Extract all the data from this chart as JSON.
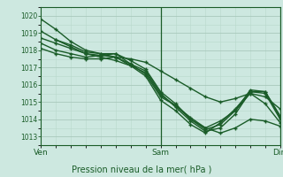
{
  "xlabel": "Pression niveau de la mer( hPa )",
  "ylim": [
    1012.5,
    1020.5
  ],
  "xlim": [
    0,
    48
  ],
  "yticks": [
    1013,
    1014,
    1015,
    1016,
    1017,
    1018,
    1019,
    1020
  ],
  "xtick_positions": [
    0,
    24,
    48
  ],
  "xtick_labels": [
    "Ven",
    "Sam",
    "Dim"
  ],
  "bg_color": "#cde8e0",
  "line_color": "#1a5c28",
  "grid_major_color": "#a8c8bc",
  "grid_minor_color": "#b8d8cc",
  "marker": "+",
  "linewidth": 1.0,
  "series": [
    [
      [
        0,
        1019.8
      ],
      [
        3,
        1019.2
      ],
      [
        6,
        1018.5
      ],
      [
        9,
        1018.0
      ],
      [
        12,
        1017.8
      ],
      [
        15,
        1017.6
      ],
      [
        18,
        1017.5
      ],
      [
        21,
        1017.3
      ],
      [
        24,
        1016.8
      ],
      [
        27,
        1016.3
      ],
      [
        30,
        1015.8
      ],
      [
        33,
        1015.3
      ],
      [
        36,
        1015.0
      ],
      [
        39,
        1015.2
      ],
      [
        42,
        1015.5
      ],
      [
        45,
        1015.3
      ],
      [
        48,
        1014.6
      ]
    ],
    [
      [
        0,
        1019.1
      ],
      [
        3,
        1018.6
      ],
      [
        6,
        1018.2
      ],
      [
        9,
        1017.8
      ],
      [
        12,
        1017.6
      ],
      [
        15,
        1017.4
      ],
      [
        18,
        1017.1
      ],
      [
        21,
        1016.7
      ],
      [
        24,
        1015.4
      ],
      [
        27,
        1014.8
      ],
      [
        30,
        1014.1
      ],
      [
        33,
        1013.5
      ],
      [
        36,
        1013.2
      ],
      [
        39,
        1013.5
      ],
      [
        42,
        1014.0
      ],
      [
        45,
        1013.9
      ],
      [
        48,
        1013.6
      ]
    ],
    [
      [
        0,
        1018.7
      ],
      [
        3,
        1018.4
      ],
      [
        6,
        1018.1
      ],
      [
        9,
        1017.8
      ],
      [
        12,
        1017.7
      ],
      [
        15,
        1017.6
      ],
      [
        18,
        1017.2
      ],
      [
        21,
        1016.8
      ],
      [
        24,
        1015.5
      ],
      [
        27,
        1014.7
      ],
      [
        30,
        1013.9
      ],
      [
        33,
        1013.3
      ],
      [
        36,
        1013.5
      ],
      [
        39,
        1014.3
      ],
      [
        42,
        1015.6
      ],
      [
        45,
        1015.6
      ],
      [
        48,
        1014.1
      ]
    ],
    [
      [
        0,
        1018.4
      ],
      [
        3,
        1018.0
      ],
      [
        6,
        1017.8
      ],
      [
        9,
        1017.6
      ],
      [
        12,
        1017.7
      ],
      [
        15,
        1017.8
      ],
      [
        18,
        1017.4
      ],
      [
        21,
        1016.9
      ],
      [
        24,
        1015.6
      ],
      [
        27,
        1014.9
      ],
      [
        30,
        1014.0
      ],
      [
        33,
        1013.4
      ],
      [
        36,
        1013.7
      ],
      [
        39,
        1014.5
      ],
      [
        42,
        1015.7
      ],
      [
        45,
        1015.6
      ],
      [
        48,
        1014.2
      ]
    ],
    [
      [
        0,
        1018.1
      ],
      [
        3,
        1017.8
      ],
      [
        6,
        1017.6
      ],
      [
        9,
        1017.5
      ],
      [
        12,
        1017.5
      ],
      [
        15,
        1017.6
      ],
      [
        18,
        1017.1
      ],
      [
        21,
        1016.5
      ],
      [
        24,
        1015.1
      ],
      [
        27,
        1014.5
      ],
      [
        30,
        1013.7
      ],
      [
        33,
        1013.2
      ],
      [
        36,
        1013.8
      ],
      [
        39,
        1014.6
      ],
      [
        42,
        1015.6
      ],
      [
        45,
        1015.5
      ],
      [
        48,
        1014.0
      ]
    ],
    [
      [
        3,
        1018.6
      ],
      [
        6,
        1018.3
      ],
      [
        9,
        1017.9
      ],
      [
        12,
        1017.8
      ],
      [
        15,
        1017.8
      ],
      [
        18,
        1017.2
      ],
      [
        21,
        1016.6
      ],
      [
        24,
        1015.3
      ],
      [
        27,
        1014.8
      ],
      [
        30,
        1014.0
      ],
      [
        33,
        1013.5
      ],
      [
        36,
        1013.9
      ],
      [
        39,
        1014.5
      ],
      [
        42,
        1015.5
      ],
      [
        45,
        1014.9
      ],
      [
        48,
        1013.8
      ]
    ]
  ]
}
